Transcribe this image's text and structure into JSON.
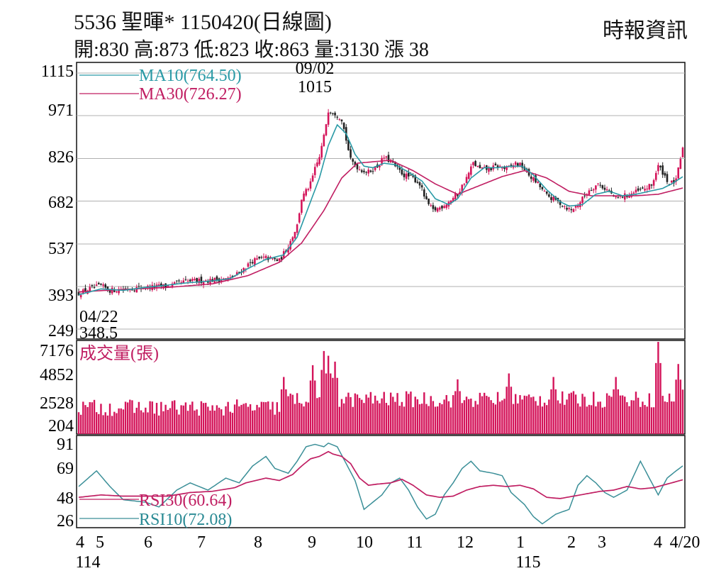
{
  "header": {
    "title": "5536  聖暉* 1150420(日線圖)",
    "ohlc": "開:830 高:873 低:823 收:863 量:3130 漲 38",
    "source": "時報資訊"
  },
  "colors": {
    "ma10": "#2a9aa6",
    "ma30": "#c01e62",
    "up": "#d4145a",
    "down": "#222222",
    "volume": "#d4145a",
    "rsi30": "#c01e62",
    "rsi10": "#3b8f98",
    "grid": "#b0b0b0"
  },
  "chart_data": [
    {
      "type": "candlestick",
      "panel": "price",
      "yticks": [
        "1115",
        "971",
        "826",
        "682",
        "537",
        "393",
        "249"
      ],
      "ylim": [
        249,
        1115
      ],
      "series": [
        {
          "name": "MA10(764.50)"
        },
        {
          "name": "MA30(726.27)"
        }
      ],
      "annotations": [
        {
          "date": "09/02",
          "value": "1015"
        },
        {
          "date": "04/22",
          "value": "348.5"
        }
      ],
      "close_path": [
        [
          0,
          370
        ],
        [
          5,
          385
        ],
        [
          10,
          395
        ],
        [
          14,
          380
        ],
        [
          20,
          385
        ],
        [
          30,
          390
        ],
        [
          40,
          395
        ],
        [
          48,
          410
        ],
        [
          60,
          415
        ],
        [
          68,
          420
        ],
        [
          72,
          440
        ],
        [
          78,
          480
        ],
        [
          84,
          490
        ],
        [
          90,
          480
        ],
        [
          94,
          530
        ],
        [
          98,
          600
        ],
        [
          100,
          690
        ],
        [
          104,
          740
        ],
        [
          106,
          790
        ],
        [
          108,
          830
        ],
        [
          110,
          900
        ],
        [
          112,
          990
        ],
        [
          115,
          980
        ],
        [
          118,
          960
        ],
        [
          122,
          820
        ],
        [
          126,
          790
        ],
        [
          130,
          780
        ],
        [
          134,
          800
        ],
        [
          137,
          830
        ],
        [
          140,
          815
        ],
        [
          143,
          790
        ],
        [
          146,
          770
        ],
        [
          150,
          760
        ],
        [
          153,
          740
        ],
        [
          156,
          680
        ],
        [
          159,
          650
        ],
        [
          162,
          660
        ],
        [
          166,
          680
        ],
        [
          170,
          705
        ],
        [
          174,
          760
        ],
        [
          177,
          810
        ],
        [
          180,
          790
        ],
        [
          184,
          790
        ],
        [
          188,
          800
        ],
        [
          192,
          790
        ],
        [
          196,
          810
        ],
        [
          199,
          800
        ],
        [
          202,
          770
        ],
        [
          206,
          740
        ],
        [
          210,
          700
        ],
        [
          214,
          685
        ],
        [
          218,
          665
        ],
        [
          221,
          650
        ],
        [
          225,
          680
        ],
        [
          229,
          720
        ],
        [
          233,
          740
        ],
        [
          237,
          720
        ],
        [
          241,
          690
        ],
        [
          245,
          700
        ],
        [
          249,
          710
        ],
        [
          253,
          720
        ],
        [
          257,
          735
        ],
        [
          260,
          800
        ],
        [
          262,
          780
        ],
        [
          265,
          740
        ],
        [
          268,
          750
        ],
        [
          271,
          863
        ]
      ],
      "ma10_path": [
        [
          0,
          365
        ],
        [
          10,
          385
        ],
        [
          20,
          380
        ],
        [
          30,
          390
        ],
        [
          40,
          398
        ],
        [
          48,
          405
        ],
        [
          60,
          412
        ],
        [
          68,
          420
        ],
        [
          75,
          450
        ],
        [
          84,
          485
        ],
        [
          92,
          500
        ],
        [
          98,
          560
        ],
        [
          104,
          680
        ],
        [
          108,
          760
        ],
        [
          112,
          870
        ],
        [
          116,
          940
        ],
        [
          120,
          910
        ],
        [
          124,
          840
        ],
        [
          128,
          800
        ],
        [
          132,
          795
        ],
        [
          137,
          810
        ],
        [
          142,
          805
        ],
        [
          148,
          780
        ],
        [
          154,
          750
        ],
        [
          160,
          690
        ],
        [
          166,
          670
        ],
        [
          170,
          690
        ],
        [
          176,
          760
        ],
        [
          182,
          795
        ],
        [
          188,
          795
        ],
        [
          194,
          800
        ],
        [
          199,
          800
        ],
        [
          204,
          770
        ],
        [
          210,
          720
        ],
        [
          216,
          680
        ],
        [
          220,
          665
        ],
        [
          226,
          670
        ],
        [
          232,
          705
        ],
        [
          238,
          715
        ],
        [
          244,
          700
        ],
        [
          250,
          705
        ],
        [
          256,
          715
        ],
        [
          262,
          725
        ],
        [
          266,
          740
        ],
        [
          271,
          764.5
        ]
      ],
      "ma30_path": [
        [
          0,
          375
        ],
        [
          20,
          383
        ],
        [
          40,
          390
        ],
        [
          60,
          402
        ],
        [
          76,
          430
        ],
        [
          90,
          475
        ],
        [
          100,
          540
        ],
        [
          110,
          650
        ],
        [
          118,
          760
        ],
        [
          125,
          810
        ],
        [
          132,
          815
        ],
        [
          140,
          820
        ],
        [
          150,
          785
        ],
        [
          160,
          740
        ],
        [
          170,
          705
        ],
        [
          180,
          735
        ],
        [
          190,
          765
        ],
        [
          200,
          785
        ],
        [
          210,
          760
        ],
        [
          220,
          715
        ],
        [
          230,
          700
        ],
        [
          240,
          700
        ],
        [
          250,
          700
        ],
        [
          260,
          705
        ],
        [
          271,
          726.27
        ]
      ]
    },
    {
      "type": "bar",
      "panel": "volume",
      "title": "成交量(張)",
      "yticks": [
        "7176",
        "4852",
        "2528",
        "204"
      ],
      "ylim": [
        204,
        7176
      ],
      "peaks": [
        [
          30,
          1600
        ],
        [
          60,
          1800
        ],
        [
          92,
          4200
        ],
        [
          105,
          5200
        ],
        [
          110,
          6400
        ],
        [
          112,
          6000
        ],
        [
          115,
          5500
        ],
        [
          170,
          4000
        ],
        [
          193,
          4500
        ],
        [
          213,
          4200
        ],
        [
          241,
          4200
        ],
        [
          260,
          7176
        ],
        [
          269,
          5300
        ]
      ]
    },
    {
      "type": "line",
      "panel": "rsi",
      "yticks": [
        "91",
        "69",
        "48",
        "26"
      ],
      "ylim": [
        22,
        95
      ],
      "series": [
        {
          "name": "RSI30(60.64)",
          "path": [
            [
              0,
              46
            ],
            [
              10,
              48
            ],
            [
              20,
              47
            ],
            [
              40,
              47
            ],
            [
              50,
              50
            ],
            [
              60,
              51
            ],
            [
              70,
              54
            ],
            [
              75,
              58
            ],
            [
              84,
              62
            ],
            [
              90,
              60
            ],
            [
              96,
              65
            ],
            [
              100,
              72
            ],
            [
              104,
              78
            ],
            [
              108,
              80
            ],
            [
              112,
              84
            ],
            [
              114,
              82
            ],
            [
              118,
              80
            ],
            [
              122,
              74
            ],
            [
              126,
              62
            ],
            [
              130,
              56
            ],
            [
              134,
              57
            ],
            [
              140,
              58
            ],
            [
              145,
              61
            ],
            [
              150,
              56
            ],
            [
              156,
              48
            ],
            [
              162,
              46
            ],
            [
              168,
              47
            ],
            [
              174,
              52
            ],
            [
              180,
              55
            ],
            [
              186,
              56
            ],
            [
              192,
              55
            ],
            [
              198,
              56
            ],
            [
              204,
              53
            ],
            [
              210,
              46
            ],
            [
              216,
              45
            ],
            [
              222,
              47
            ],
            [
              228,
              49
            ],
            [
              234,
              51
            ],
            [
              240,
              52
            ],
            [
              246,
              55
            ],
            [
              252,
              53
            ],
            [
              258,
              54
            ],
            [
              262,
              56
            ],
            [
              266,
              58
            ],
            [
              271,
              60.64
            ]
          ]
        },
        {
          "name": "RSI10(72.08)",
          "path": [
            [
              0,
              55
            ],
            [
              8,
              68
            ],
            [
              14,
              55
            ],
            [
              20,
              44
            ],
            [
              30,
              42
            ],
            [
              36,
              38
            ],
            [
              44,
              52
            ],
            [
              50,
              58
            ],
            [
              58,
              52
            ],
            [
              66,
              62
            ],
            [
              72,
              58
            ],
            [
              78,
              72
            ],
            [
              84,
              80
            ],
            [
              88,
              70
            ],
            [
              94,
              66
            ],
            [
              98,
              76
            ],
            [
              102,
              88
            ],
            [
              106,
              90
            ],
            [
              110,
              88
            ],
            [
              112,
              91
            ],
            [
              116,
              88
            ],
            [
              120,
              74
            ],
            [
              124,
              60
            ],
            [
              128,
              36
            ],
            [
              132,
              42
            ],
            [
              136,
              48
            ],
            [
              140,
              58
            ],
            [
              144,
              62
            ],
            [
              148,
              52
            ],
            [
              152,
              38
            ],
            [
              156,
              28
            ],
            [
              160,
              32
            ],
            [
              164,
              48
            ],
            [
              168,
              58
            ],
            [
              172,
              70
            ],
            [
              176,
              76
            ],
            [
              180,
              68
            ],
            [
              186,
              66
            ],
            [
              190,
              64
            ],
            [
              194,
              50
            ],
            [
              200,
              40
            ],
            [
              204,
              30
            ],
            [
              208,
              24
            ],
            [
              214,
              32
            ],
            [
              220,
              36
            ],
            [
              224,
              56
            ],
            [
              228,
              64
            ],
            [
              232,
              58
            ],
            [
              236,
              50
            ],
            [
              240,
              46
            ],
            [
              246,
              52
            ],
            [
              252,
              76
            ],
            [
              256,
              62
            ],
            [
              260,
              48
            ],
            [
              264,
              62
            ],
            [
              268,
              68
            ],
            [
              271,
              72.08
            ]
          ]
        }
      ]
    }
  ],
  "x_axis": {
    "ticks": [
      "4",
      "5",
      "6",
      "7",
      "8",
      "9",
      "10",
      "11",
      "12",
      "1",
      "2",
      "3",
      "4",
      "4/20"
    ],
    "years": [
      "114",
      "115"
    ]
  }
}
